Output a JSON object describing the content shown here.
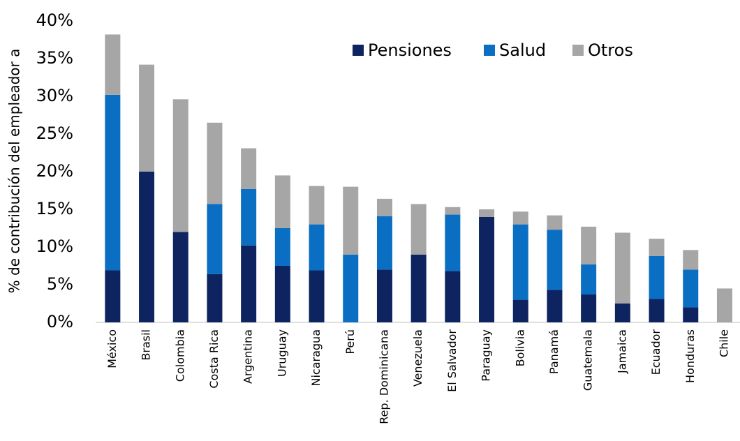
{
  "chart_data": {
    "type": "stacked-bar",
    "ylabel": "% de contribución del empleador a",
    "categories": [
      "México",
      "Brasil",
      "Colombia",
      "Costa Rica",
      "Argentina",
      "Uruguay",
      "Nicaragua",
      "Perú",
      "Rep. Dominicana",
      "Venezuela",
      "El Salvador",
      "Paraguay",
      "Bolivia",
      "Panamá",
      "Guatemala",
      "Jamaica",
      "Ecuador",
      "Honduras",
      "Chile"
    ],
    "series": [
      {
        "name": "Pensiones",
        "color": "#0d2461",
        "values": [
          6.9,
          20.0,
          12.0,
          6.4,
          10.2,
          7.5,
          6.9,
          0,
          7.0,
          9.0,
          6.8,
          14.0,
          3.0,
          4.3,
          3.7,
          2.5,
          3.1,
          2.0,
          0
        ]
      },
      {
        "name": "Salud",
        "color": "#0a6fc2",
        "values": [
          23.3,
          0,
          0,
          9.3,
          7.5,
          5.0,
          6.1,
          9.0,
          7.1,
          0,
          7.5,
          0,
          10.0,
          8.0,
          4.0,
          0,
          5.7,
          5.0,
          0
        ]
      },
      {
        "name": "Otros",
        "color": "#a6a6a6",
        "values": [
          8.0,
          14.2,
          17.6,
          10.8,
          5.4,
          7.0,
          5.1,
          9.0,
          2.3,
          6.7,
          1.0,
          1.0,
          1.7,
          1.9,
          5.0,
          9.4,
          2.3,
          2.6,
          4.5
        ]
      }
    ],
    "ylim": [
      0,
      40
    ],
    "yticks": [
      {
        "value": 0,
        "label": "0%"
      },
      {
        "value": 5,
        "label": "5%"
      },
      {
        "value": 10,
        "label": "10%"
      },
      {
        "value": 15,
        "label": "15%"
      },
      {
        "value": 20,
        "label": "20%"
      },
      {
        "value": 25,
        "label": "25%"
      },
      {
        "value": 30,
        "label": "30%"
      },
      {
        "value": 35,
        "label": "35%"
      },
      {
        "value": 40,
        "label": "40%"
      }
    ],
    "grid": false,
    "legend": "top"
  }
}
